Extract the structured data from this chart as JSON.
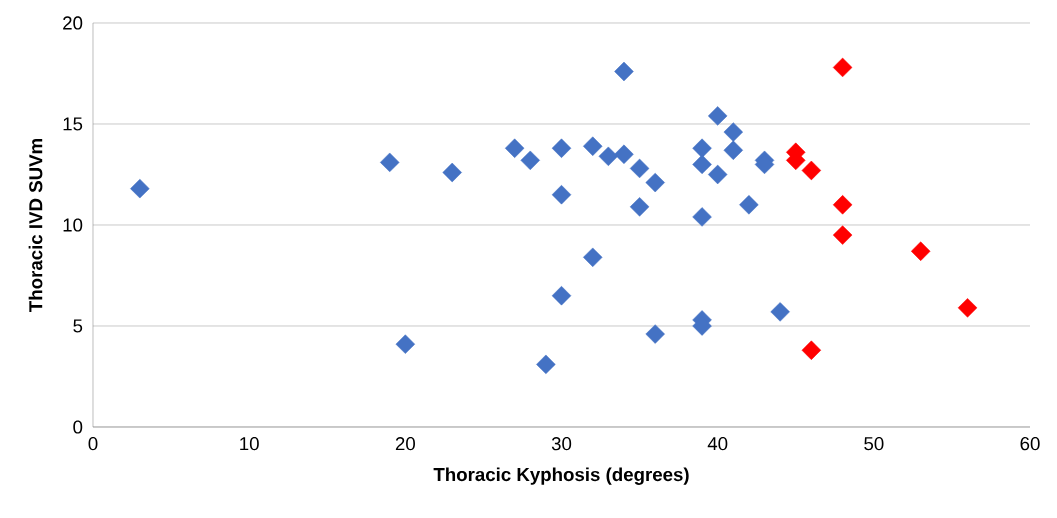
{
  "chart_data": {
    "type": "scatter",
    "xlabel": "Thoracic Kyphosis (degrees)",
    "ylabel": "Thoracic IVD SUVm",
    "xlim": [
      0,
      60
    ],
    "xticks": [
      0,
      10,
      20,
      30,
      40,
      50,
      60
    ],
    "ylim": [
      0,
      20
    ],
    "yticks": [
      0,
      5,
      10,
      15,
      20
    ],
    "grid": "y",
    "marker": "diamond",
    "series": [
      {
        "color": "#4472c4",
        "x": [
          3,
          19,
          20,
          23,
          27,
          28,
          29,
          30,
          30,
          30,
          32,
          32,
          33,
          34,
          34,
          35,
          35,
          36,
          36,
          39,
          39,
          39,
          39,
          39,
          40,
          40,
          41,
          41,
          42,
          43,
          43,
          44
        ],
        "values": [
          11.8,
          13.1,
          4.1,
          12.6,
          13.8,
          13.2,
          3.1,
          13.8,
          11.5,
          6.5,
          13.9,
          8.4,
          13.4,
          17.6,
          13.5,
          12.8,
          10.9,
          12.1,
          4.6,
          13.8,
          13.0,
          10.4,
          5.3,
          5.0,
          15.4,
          12.5,
          14.6,
          13.7,
          11.0,
          13.2,
          13.0,
          5.7
        ]
      },
      {
        "color": "#ff0000",
        "x": [
          45,
          45,
          46,
          46,
          48,
          48,
          48,
          53,
          56
        ],
        "values": [
          13.6,
          13.2,
          12.7,
          3.8,
          17.8,
          11.0,
          9.5,
          8.7,
          5.9
        ]
      }
    ]
  }
}
